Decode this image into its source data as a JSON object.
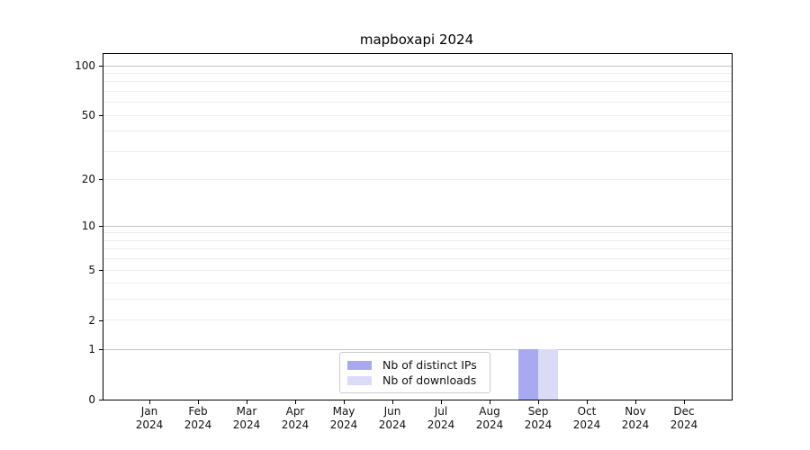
{
  "chart_data": {
    "type": "bar",
    "title": "mapboxapi 2024",
    "year_label": "2024",
    "months": [
      "Jan",
      "Feb",
      "Mar",
      "Apr",
      "May",
      "Jun",
      "Jul",
      "Aug",
      "Sep",
      "Oct",
      "Nov",
      "Dec"
    ],
    "series": [
      {
        "name": "Nb of distinct IPs",
        "color": "#a9a9f1",
        "values": [
          0,
          0,
          0,
          0,
          0,
          0,
          0,
          0,
          1,
          0,
          0,
          0
        ]
      },
      {
        "name": "Nb of downloads",
        "color": "#dbdbf8",
        "values": [
          0,
          0,
          0,
          0,
          0,
          0,
          0,
          0,
          1,
          0,
          0,
          0
        ]
      }
    ],
    "y_axis": {
      "scale": "log1p",
      "ticks": [
        0,
        1,
        2,
        5,
        10,
        20,
        50,
        100
      ],
      "major_gridlines": [
        1,
        10,
        100
      ],
      "minor_gridlines": [
        2,
        3,
        4,
        5,
        6,
        7,
        8,
        9,
        20,
        30,
        40,
        50,
        60,
        70,
        80,
        90
      ],
      "max": 118
    },
    "legend": {
      "entries": [
        "Nb of distinct IPs",
        "Nb of downloads"
      ],
      "position": "lower center"
    },
    "colors": {
      "major_grid": "#c6c6c6",
      "minor_grid": "#ededed",
      "axis": "#000000",
      "tick_text": "#111111"
    },
    "grid": true,
    "xlabel": "",
    "ylabel": ""
  }
}
